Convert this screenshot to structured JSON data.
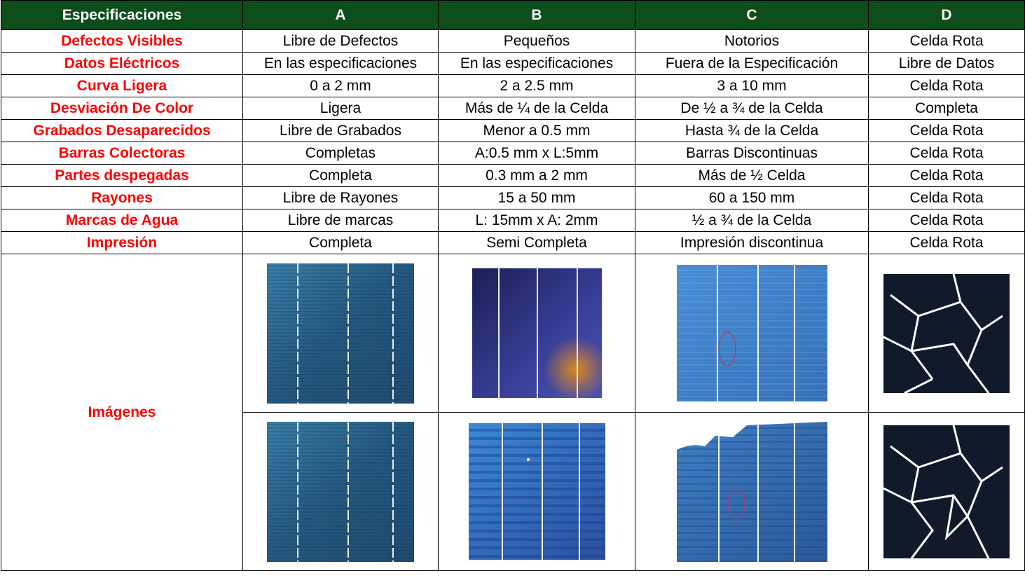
{
  "header": {
    "col0": "Especificaciones",
    "col1": "A",
    "col2": "B",
    "col3": "C",
    "col4": "D"
  },
  "rows": [
    {
      "label": "Defectos Visibles",
      "a": "Libre de Defectos",
      "b": "Pequeños",
      "c": "Notorios",
      "d": "Celda Rota"
    },
    {
      "label": "Datos Eléctricos",
      "a": "En las especificaciones",
      "b": "En las especificaciones",
      "c": "Fuera de la Especificación",
      "d": "Libre de Datos"
    },
    {
      "label": "Curva Ligera",
      "a": "0 a 2 mm",
      "b": "2 a 2.5 mm",
      "c": "3 a 10 mm",
      "d": "Celda Rota"
    },
    {
      "label": "Desviación De Color",
      "a": "Ligera",
      "b": "Más de ¼ de la Celda",
      "c": "De ½ a ¾ de la Celda",
      "d": "Completa"
    },
    {
      "label": "Grabados Desaparecidos",
      "a": "Libre de Grabados",
      "b": "Menor a 0.5 mm",
      "c": "Hasta ¾ de la Celda",
      "d": "Celda Rota"
    },
    {
      "label": "Barras Colectoras",
      "a": "Completas",
      "b": "A:0.5 mm x L:5mm",
      "c": "Barras Discontinuas",
      "d": "Celda Rota"
    },
    {
      "label": "Partes despegadas",
      "a": "Completa",
      "b": "0.3 mm a 2 mm",
      "c": "Más de ½ Celda",
      "d": "Celda Rota"
    },
    {
      "label": "Rayones",
      "a": "Libre de Rayones",
      "b": "15 a 50 mm",
      "c": "60 a 150 mm",
      "d": "Celda Rota"
    },
    {
      "label": "Marcas de Agua",
      "a": "Libre de marcas",
      "b": "L: 15mm x A: 2mm",
      "c": "½ a ¾ de la Celda",
      "d": "Celda Rota"
    },
    {
      "label": "Impresión",
      "a": "Completa",
      "b": "Semi Completa",
      "c": "Impresión discontinua",
      "d": "Celda Rota"
    }
  ],
  "images": {
    "label": "Imágenes"
  },
  "colors": {
    "header_bg": "#0e4d1c",
    "label_red": "#ff0000",
    "cell_blue": "#2f6f9c",
    "cell_dark": "#1b2740"
  }
}
